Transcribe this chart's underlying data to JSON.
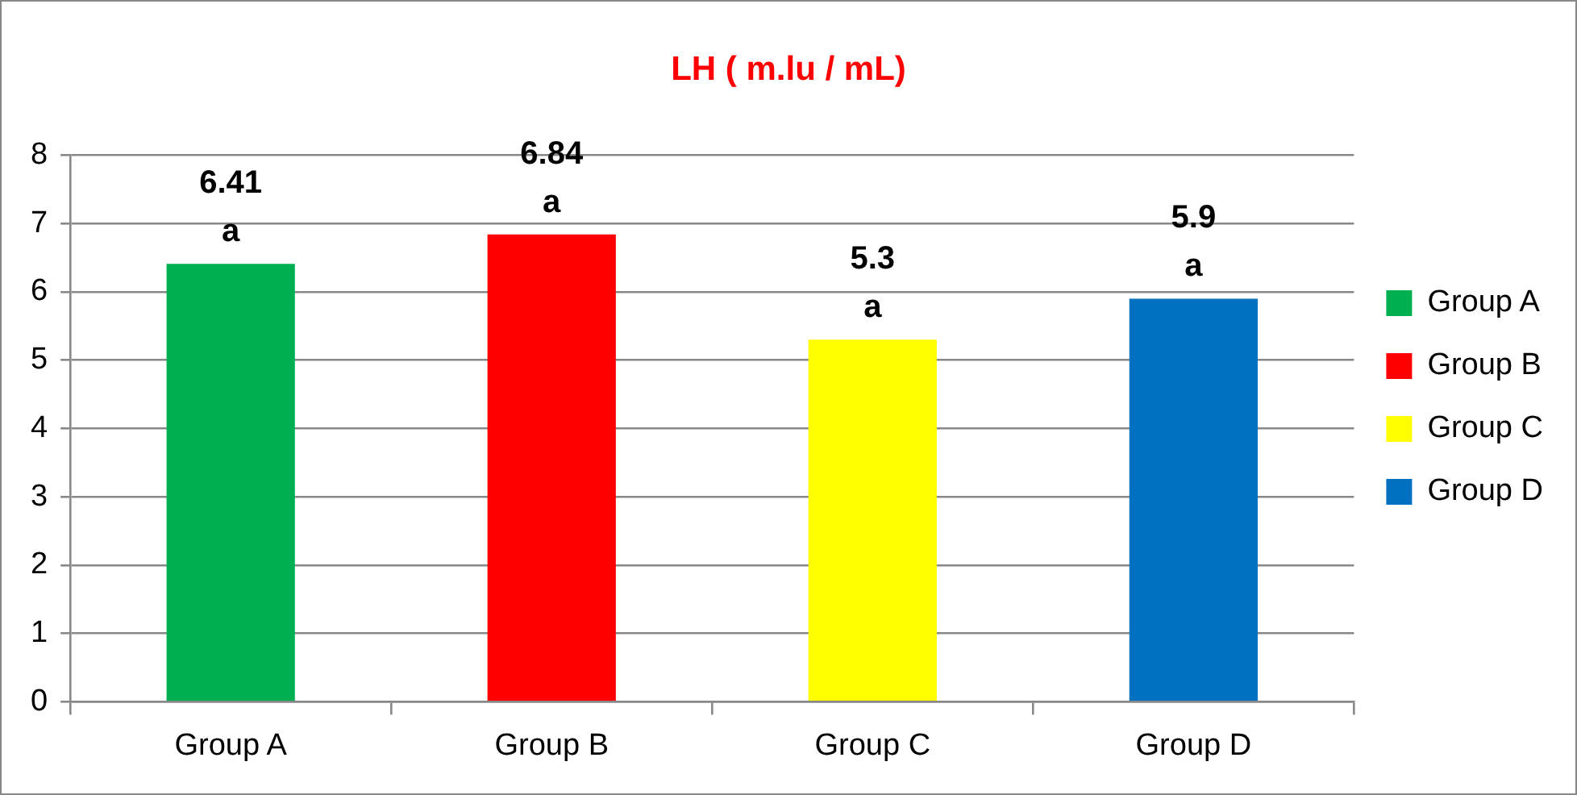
{
  "chart_data": {
    "type": "bar",
    "title": "LH ( m.lu / mL)",
    "categories": [
      "Group A",
      "Group B",
      "Group C",
      "Group D"
    ],
    "series": [
      {
        "name": "Group A",
        "color": "#00b050",
        "values": [
          6.41,
          null,
          null,
          null
        ],
        "value_labels": [
          "6.41",
          null,
          null,
          null
        ]
      },
      {
        "name": "Group B",
        "color": "#ff0000",
        "values": [
          null,
          6.84,
          null,
          null
        ],
        "value_labels": [
          null,
          "6.84",
          null,
          null
        ]
      },
      {
        "name": "Group C",
        "color": "#ffff00",
        "values": [
          null,
          null,
          5.3,
          null
        ],
        "value_labels": [
          null,
          null,
          "5.3",
          null
        ]
      },
      {
        "name": "Group D",
        "color": "#0070c0",
        "values": [
          null,
          null,
          null,
          5.9
        ],
        "value_labels": [
          null,
          null,
          null,
          "5.9"
        ]
      }
    ],
    "annotations": [
      {
        "text": "a",
        "x": "Group A",
        "y": 6.41
      },
      {
        "text": "a",
        "x": "Group B",
        "y": 6.84
      },
      {
        "text": "a",
        "x": "Group C",
        "y": 5.3
      },
      {
        "text": "a",
        "x": "Group D",
        "y": 5.9
      }
    ],
    "ylim": [
      0,
      8
    ],
    "yticks": [
      0,
      1,
      2,
      3,
      4,
      5,
      6,
      7,
      8
    ],
    "grid": "y",
    "legend": "right"
  }
}
